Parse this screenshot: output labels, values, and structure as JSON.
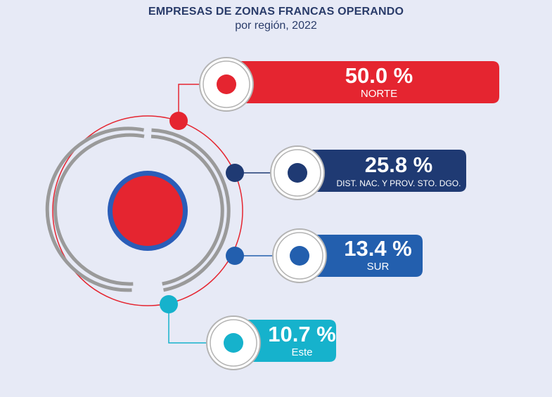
{
  "chart_data": {
    "type": "infographic",
    "title": "EMPRESAS DE ZONAS FRANCAS OPERANDO",
    "subtitle": "por región, 2022",
    "unit": "%",
    "categories": [
      "NORTE",
      "DIST. NAC. Y PROV. STO. DGO.",
      "SUR",
      "Este"
    ],
    "values": [
      50.0,
      25.8,
      13.4,
      10.7
    ],
    "value_labels": [
      "50.0 %",
      "25.8 %",
      "13.4 %",
      "10.7 %"
    ],
    "colors": [
      "#e52530",
      "#1f3a73",
      "#235fae",
      "#16b2cc"
    ]
  }
}
